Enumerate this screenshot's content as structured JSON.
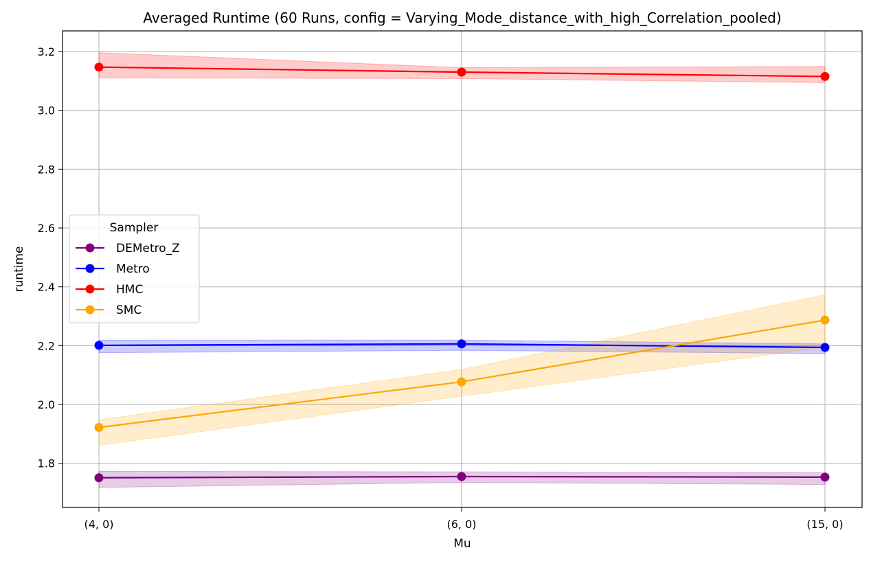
{
  "chart_data": {
    "type": "line",
    "title": "Averaged Runtime (60 Runs, config = Varying_Mode_distance_with_high_Correlation_pooled)",
    "xlabel": "Mu",
    "ylabel": "runtime",
    "categories": [
      "(4, 0)",
      "(6, 0)",
      "(15, 0)"
    ],
    "ylim": [
      1.65,
      3.27
    ],
    "yticks": [
      "1.8",
      "2.0",
      "2.2",
      "2.4",
      "2.6",
      "2.8",
      "3.0",
      "3.2"
    ],
    "grid": true,
    "legend": {
      "title": "Sampler",
      "placement": "center-left"
    },
    "series": [
      {
        "name": "DEMetro_Z",
        "color": "#800080",
        "values": [
          1.751,
          1.755,
          1.753
        ],
        "lower": [
          1.718,
          1.735,
          1.728
        ],
        "upper": [
          1.773,
          1.771,
          1.768
        ]
      },
      {
        "name": "Metro",
        "color": "#0000ff",
        "values": [
          2.201,
          2.206,
          2.194
        ],
        "lower": [
          2.176,
          2.184,
          2.173
        ],
        "upper": [
          2.219,
          2.219,
          2.206
        ]
      },
      {
        "name": "HMC",
        "color": "#ff0000",
        "values": [
          3.147,
          3.13,
          3.115
        ],
        "lower": [
          3.11,
          3.108,
          3.094
        ],
        "upper": [
          3.196,
          3.145,
          3.149
        ]
      },
      {
        "name": "SMC",
        "color": "#ffa500",
        "values": [
          1.922,
          2.077,
          2.287
        ],
        "lower": [
          1.861,
          2.028,
          2.195
        ],
        "upper": [
          1.948,
          2.119,
          2.373
        ]
      }
    ]
  }
}
